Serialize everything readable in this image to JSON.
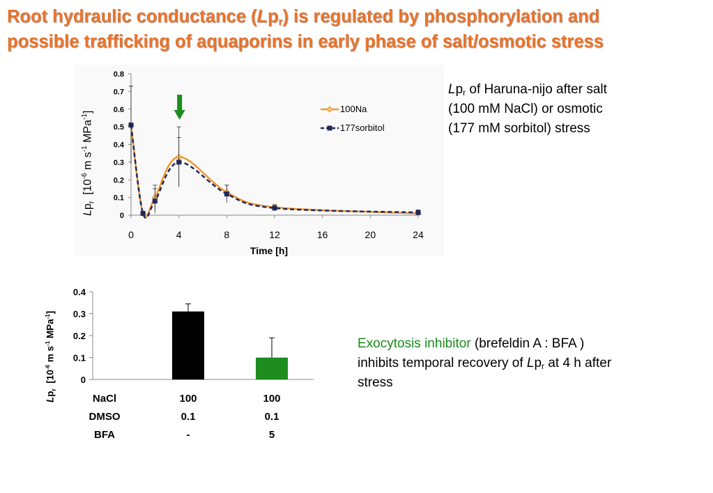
{
  "title": {
    "part1": "Root hydraulic conductance (",
    "italic": "L",
    "p": "p",
    "sub": "r",
    "part2": ") is regulated by phosphorylation and",
    "line2": "possible trafficking of aquaporins in early phase of salt/osmotic stress"
  },
  "desc1": {
    "italic": "L",
    "p": "p",
    "sub": "r",
    "rest": " of Haruna-nijo after salt",
    "line2": "(100 mM NaCl)  or osmotic",
    "line3": "(177 mM sorbitol) stress"
  },
  "desc2": {
    "green": "Exocytosis inhibitor",
    "rest1": " (brefeldin A : BFA )",
    "line2a": "inhibits temporal recovery of ",
    "italic": "L",
    "p": "p",
    "sub": "r",
    "line2b": " at 4 h after",
    "line3": "stress"
  },
  "colors": {
    "title": "#E8732A",
    "na_line": "#F0962E",
    "sorbitol_line": "#1F2A5A",
    "bar_control": "#000000",
    "bar_bfa": "#1E8C1E",
    "arrow": "#1E8C1E",
    "highlight_text": "#1A8A1A"
  },
  "chart_data": [
    {
      "type": "line",
      "xlabel": "Time [h]",
      "ylabel_parts": {
        "L": "L",
        "p": "p",
        "sub": "r",
        "pre": "[10",
        "exp1": "-6",
        "mid": " m s",
        "exp2": "-1",
        "unit": " MPa",
        "exp3": "-1",
        "close": "]"
      },
      "xticks": [
        "0",
        "4",
        "8",
        "12",
        "16",
        "20",
        "24"
      ],
      "yticks": [
        "0",
        "0.1",
        "0.2",
        "0.3",
        "0.4",
        "0.5",
        "0.6",
        "0.7",
        "0.8"
      ],
      "xlim": [
        0,
        24
      ],
      "ylim": [
        0,
        0.8
      ],
      "annotation": "arrow at 4 h",
      "legend_position": "right",
      "series": [
        {
          "name": "100Na",
          "marker": "diamond",
          "x": [
            0,
            1,
            2,
            4,
            8,
            12,
            24
          ],
          "y": [
            0.51,
            0.01,
            0.1,
            0.33,
            0.13,
            0.045,
            0.01
          ],
          "err": [
            0.22,
            0.0,
            0.07,
            0.17,
            0.04,
            0.015,
            0.01
          ]
        },
        {
          "name": "177sorbitol",
          "marker": "square",
          "x": [
            0,
            1,
            2,
            4,
            8,
            12,
            24
          ],
          "y": [
            0.51,
            0.01,
            0.08,
            0.3,
            0.12,
            0.04,
            0.015
          ],
          "err": [
            0.22,
            0.0,
            0.07,
            0.14,
            0.05,
            0.015,
            0.015
          ]
        }
      ]
    },
    {
      "type": "bar",
      "ylabel_parts": {
        "L": "L",
        "p": "p",
        "sub": "r",
        "pre": "[10",
        "exp1": "-6",
        "mid": " m s",
        "exp2": "-1",
        "unit": " MPa",
        "exp3": "-1",
        "close": "]"
      },
      "yticks": [
        "0",
        "0.1",
        "0.2",
        "0.3",
        "0.4"
      ],
      "ylim": [
        0,
        0.4
      ],
      "categories": [
        "",
        "",
        ""
      ],
      "values": [
        null,
        0.31,
        0.1
      ],
      "err": [
        null,
        0.035,
        0.09
      ],
      "table": {
        "rows": [
          {
            "label": "NaCl",
            "cells": [
              "100",
              "100"
            ]
          },
          {
            "label": "DMSO",
            "cells": [
              "0.1",
              "0.1"
            ]
          },
          {
            "label": "BFA",
            "cells": [
              "-",
              "5"
            ]
          }
        ]
      }
    }
  ]
}
